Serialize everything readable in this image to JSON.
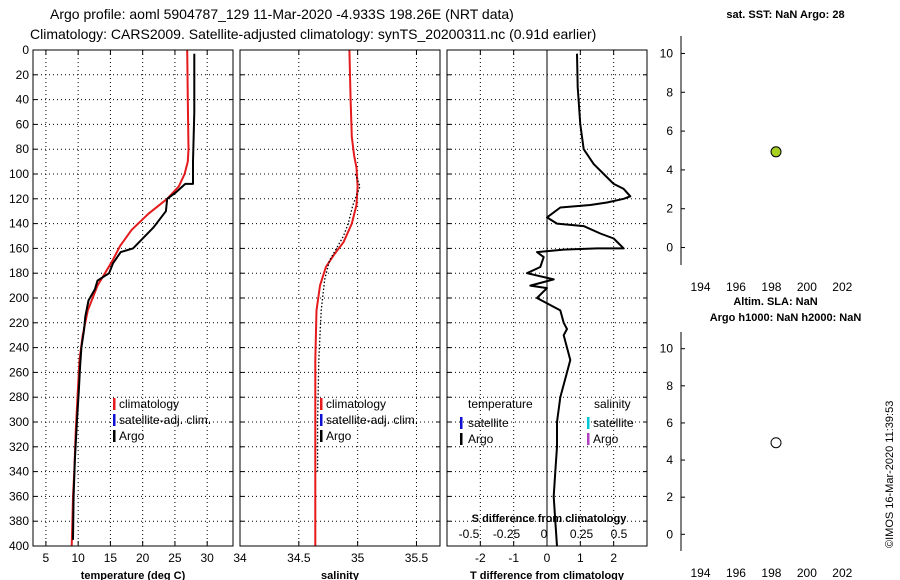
{
  "header": {
    "title_line1": "Argo profile: aoml 5904787_129 11-Mar-2020 -4.933S 198.26E (NRT data)",
    "title_line2": "Climatology: CARS2009. Satellite-adjusted climatology: synTS_20200311.nc (0.91d earlier)"
  },
  "stamp": "©IMOS 16-Mar-2020 11:39:53",
  "colors": {
    "climatology": "#e41a1c",
    "satellite_adj": "#1010d0",
    "argo": "#000000",
    "satellite_s": "#00c8d8",
    "argo_s": "#b040c0",
    "marker_sst": "#a8d020",
    "marker_sla": "#ffffff"
  },
  "chart_data": [
    {
      "type": "line",
      "name": "temperature-panel",
      "xlabel": "temperature (deg C)",
      "xlim": [
        3,
        34
      ],
      "ylim": [
        0,
        400
      ],
      "xticks": [
        5,
        10,
        15,
        20,
        25,
        30
      ],
      "yticks": [
        0,
        20,
        40,
        60,
        80,
        100,
        120,
        140,
        160,
        180,
        200,
        220,
        240,
        260,
        280,
        300,
        320,
        340,
        360,
        380,
        400
      ],
      "legend": [
        "climatology",
        "satellite-adj. clim.",
        "Argo"
      ],
      "series": [
        {
          "name": "climatology",
          "x": [
            26.9,
            27.0,
            27.1,
            27.0,
            26.5,
            25.6,
            23.8,
            20.9,
            18.3,
            16.5,
            15.3,
            13.0,
            11.5,
            10.7,
            10.2,
            9.9,
            9.6,
            9.4,
            9.2,
            9.1,
            9.0
          ],
          "y": [
            0,
            40,
            80,
            90,
            100,
            110,
            120,
            132,
            145,
            158,
            170,
            190,
            210,
            230,
            250,
            280,
            310,
            340,
            360,
            380,
            400
          ]
        },
        {
          "name": "Argo",
          "x": [
            28.0,
            28.0,
            27.8,
            27.8,
            26.6,
            25.1,
            23.8,
            23.6,
            21.7,
            18.5,
            16.6,
            15.4,
            14.8,
            13.0,
            12.6,
            11.6,
            11.1,
            10.9,
            10.5,
            10.3,
            10.1,
            9.8,
            9.5,
            9.3,
            9.2
          ],
          "y": [
            3,
            50,
            90,
            108,
            108,
            115,
            120,
            130,
            143,
            160,
            163,
            172,
            180,
            186,
            193,
            202,
            215,
            226,
            240,
            255,
            275,
            300,
            330,
            360,
            395
          ]
        }
      ]
    },
    {
      "type": "line",
      "name": "salinity-panel",
      "xlabel": "salinity",
      "xlim": [
        34.0,
        35.7
      ],
      "ylim": [
        0,
        400
      ],
      "xticks": [
        34,
        34.5,
        35,
        35.5
      ],
      "xtick_labels": [
        "34",
        "34.5",
        "35",
        "35.5"
      ],
      "legend": [
        "climatology",
        "satellite-adj. clim.",
        "Argo"
      ],
      "series": [
        {
          "name": "climatology",
          "x": [
            34.93,
            34.94,
            34.95,
            34.97,
            34.99,
            35.0,
            34.99,
            34.95,
            34.88,
            34.8,
            34.73,
            34.68,
            34.65,
            34.64,
            34.64,
            34.64,
            34.64
          ],
          "y": [
            0,
            40,
            70,
            85,
            95,
            110,
            125,
            140,
            155,
            165,
            175,
            190,
            210,
            250,
            300,
            350,
            400
          ]
        },
        {
          "name": "Argo",
          "style": "dotted",
          "x": [
            34.98,
            35.02,
            34.96,
            34.92,
            34.88,
            34.82,
            34.76,
            34.72,
            34.69,
            34.67,
            34.66,
            34.66
          ],
          "y": [
            100,
            110,
            125,
            140,
            150,
            160,
            170,
            185,
            210,
            250,
            300,
            340
          ]
        }
      ]
    },
    {
      "type": "line",
      "name": "difference-panel",
      "xlabel": "T difference from climatology",
      "x2label": "S difference from climatology",
      "xlim": [
        -3.0,
        3.0
      ],
      "ylim": [
        0,
        400
      ],
      "xticks": [
        -2,
        -1,
        0,
        1,
        2
      ],
      "x2ticks": [
        -0.5,
        -0.25,
        0,
        0.25,
        0.5
      ],
      "x2tick_labels": [
        "-0.5",
        "-0.25",
        "0",
        "0.25",
        "0.5"
      ],
      "legend_temperature_title": "temperature",
      "legend_salinity_title": "salinity",
      "legend_temperature": [
        "satellite",
        "Argo"
      ],
      "legend_salinity": [
        "satellite",
        "Argo"
      ],
      "series": [
        {
          "name": "T difference Argo",
          "x": [
            0.9,
            0.92,
            1.0,
            1.1,
            1.4,
            1.7,
            2.0,
            2.3,
            2.5,
            2.3,
            1.8,
            1.3,
            0.4,
            0.0,
            0.3,
            1.1,
            1.6,
            2.0,
            2.3,
            1.5,
            0.5,
            -0.3,
            -0.1,
            -0.2,
            -0.6,
            0.2,
            -0.5,
            0.0,
            -0.3,
            0.4,
            0.5,
            0.6,
            0.5,
            0.6,
            0.7,
            0.6,
            0.4,
            0.3,
            0.3,
            0.25,
            0.2,
            0.25,
            0.3
          ],
          "y": [
            3,
            30,
            60,
            80,
            92,
            100,
            108,
            112,
            118,
            120,
            123,
            125,
            127,
            135,
            140,
            142,
            148,
            152,
            160,
            160,
            161,
            163,
            167,
            175,
            180,
            185,
            190,
            192,
            200,
            210,
            220,
            225,
            230,
            240,
            250,
            260,
            280,
            300,
            320,
            340,
            360,
            380,
            400
          ]
        }
      ]
    },
    {
      "type": "scatter",
      "name": "sst-panel",
      "title": "sat. SST: NaN Argo: 28",
      "xlim": [
        192.9,
        203.9
      ],
      "ylim": [
        -0.9,
        10.9
      ],
      "xticks": [
        194,
        196,
        198,
        200,
        202
      ],
      "yticks": [
        0,
        2,
        4,
        6,
        8,
        10
      ],
      "points": [
        {
          "x": 198.26,
          "y": 4.933
        }
      ]
    },
    {
      "type": "scatter",
      "name": "sla-panel",
      "title_line1": "Altim. SLA: NaN",
      "title_line2": "Argo h1000: NaN h2000: NaN",
      "xlim": [
        192.9,
        203.9
      ],
      "ylim": [
        -0.9,
        10.9
      ],
      "xticks": [
        194,
        196,
        198,
        200,
        202
      ],
      "yticks": [
        0,
        2,
        4,
        6,
        8,
        10
      ],
      "points": [
        {
          "x": 198.26,
          "y": 4.933
        }
      ]
    }
  ]
}
